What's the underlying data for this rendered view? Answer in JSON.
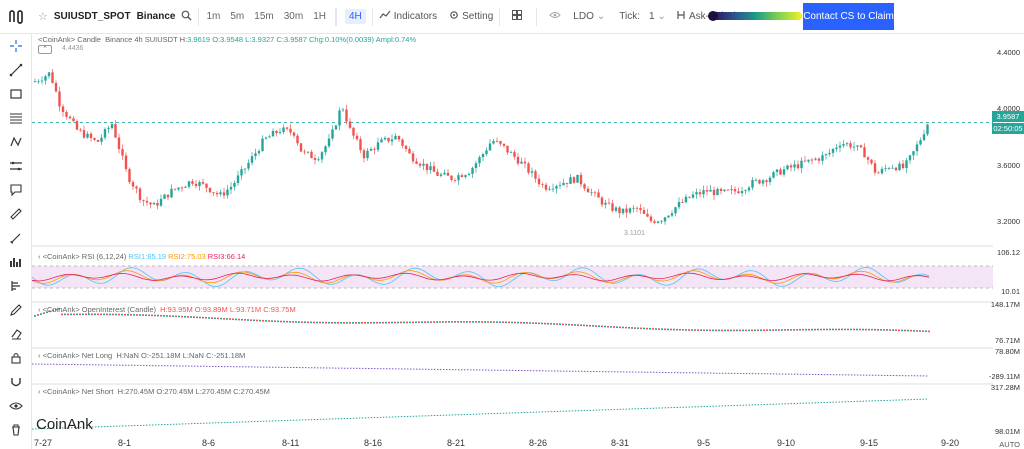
{
  "header": {
    "symbol": "SUIUSDT_SPOT",
    "exchange": "Binance",
    "timeframes": [
      "1m",
      "5m",
      "15m",
      "30m",
      "1H",
      "4H"
    ],
    "active_timeframe": "4H",
    "indicators_label": "Indicators",
    "setting_label": "Setting",
    "ldo_label": "LDO",
    "tick_label": "Tick:",
    "tick_value": "1",
    "cluster_label": "Ask-Bid Cluster",
    "cta_label": "Contact CS to Claim"
  },
  "left_tools": [
    "crosshair-icon",
    "trendline-icon",
    "rectangle-icon",
    "fib-icon",
    "pattern-icon",
    "horizontal-lines-icon",
    "comment-icon",
    "ruler-icon",
    "brush-icon",
    "indicator-bars-icon",
    "volume-profile-icon",
    "pencil-icon",
    "eraser-icon",
    "lock-icon",
    "magnet-icon",
    "eye-icon",
    "trash-icon"
  ],
  "main_pane": {
    "title": "<CoinAnk> Candle",
    "info": "Binance 4h SUIUSDT",
    "o_label": "H:",
    "h": "3.9619",
    "o": "O:3.9548",
    "l": "L:3.9327",
    "c": "C:3.9587",
    "chg": "Chg:0.10%(0.0039)",
    "amp": "Ampl:0.74%",
    "high_marker": "4.4436",
    "low_marker": "3.1101",
    "price_badge": "3.9587",
    "time_badge": "02:50:05",
    "y_ticks": [
      "4.4000",
      "4.0000",
      "3.6000",
      "3.2000"
    ]
  },
  "rsi_pane": {
    "title": "<CoinAnk> RSI",
    "params": "(6,12,24)",
    "rsi1": "RSI1:85.19",
    "rsi2": "RSI2:75.03",
    "rsi3": "RSI3:66.14",
    "y_ticks": [
      "106.12",
      "10.01"
    ]
  },
  "oi_pane": {
    "title": "<CoinAnk> OpenInterest (Candle)",
    "h": "H:93.95M",
    "o": "O:93.89M",
    "l": "L:93.71M",
    "c": "C:93.75M",
    "y_ticks": [
      "148.17M",
      "76.71M"
    ]
  },
  "netlong_pane": {
    "title": "<CoinAnk> Net Long",
    "h": "H:NaN",
    "o": "O:-251.18M",
    "l": "L:NaN",
    "c": "C:-251.18M",
    "y_ticks": [
      "78.80M",
      "-289.11M"
    ]
  },
  "netshort_pane": {
    "title": "<CoinAnk> Net Short",
    "h": "H:270.45M",
    "o": "O:270.45M",
    "l": "L:270.45M",
    "c": "C:270.45M",
    "y_ticks": [
      "317.28M",
      "98.01M"
    ]
  },
  "x_axis": [
    "7-27",
    "8-1",
    "8-6",
    "8-11",
    "8-16",
    "8-21",
    "8-26",
    "8-31",
    "9-5",
    "9-10",
    "9-15",
    "9-20"
  ],
  "auto_label": "AUTO",
  "watermark": "CoinAnk",
  "colors": {
    "up": "#26a69a",
    "down": "#ef5350",
    "accent": "#2962ff",
    "rsi1": "#4fc3f7",
    "rsi2": "#ff9800",
    "rsi3": "#e91e63"
  }
}
